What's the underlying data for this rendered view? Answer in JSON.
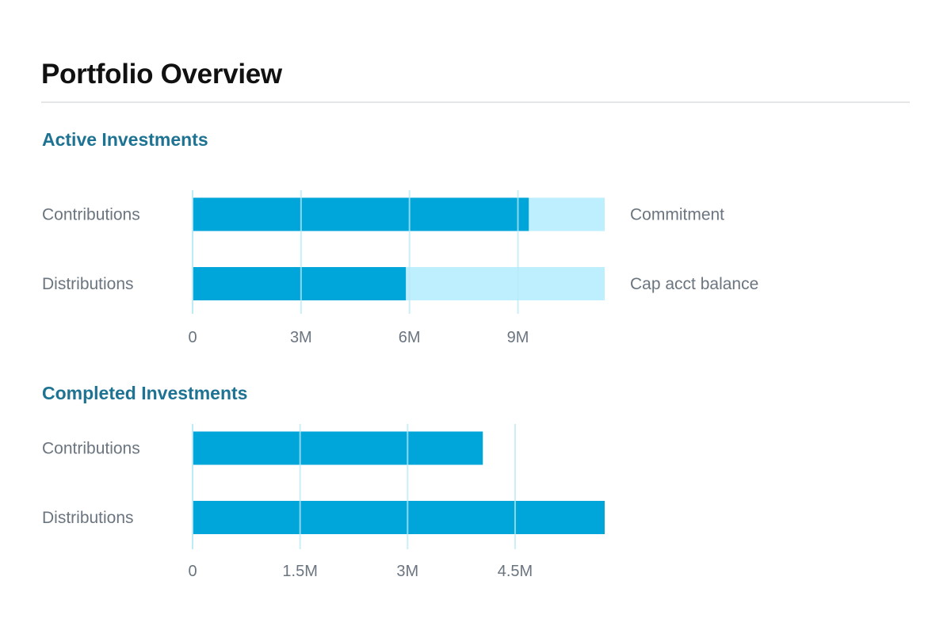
{
  "page": {
    "title": "Portfolio Overview"
  },
  "colors": {
    "primary_bar": "#00a5d9",
    "secondary_bar": "#bdefff",
    "gridline": "#b8e9f5",
    "section_title": "#1e7392",
    "label_text": "#6b7580"
  },
  "chart_data": [
    {
      "type": "bar",
      "orientation": "horizontal",
      "title": "Active Investments",
      "categories": [
        "Contributions",
        "Distributions"
      ],
      "series": [
        {
          "values": [
            9.3,
            5.9
          ]
        },
        {
          "values": [
            11.4,
            11.4
          ]
        }
      ],
      "bar_end_labels": [
        "Commitment",
        "Cap acct balance"
      ],
      "xlim": [
        0,
        11.4
      ],
      "xticks": [
        0,
        3,
        6,
        9
      ],
      "xtick_labels": [
        "0",
        "3M",
        "6M",
        "9M"
      ],
      "xlabel": "",
      "ylabel": "",
      "grid": "vertical"
    },
    {
      "type": "bar",
      "orientation": "horizontal",
      "title": "Completed Investments",
      "categories": [
        "Contributions",
        "Distributions"
      ],
      "series": [
        {
          "values": [
            4.05,
            5.75
          ]
        }
      ],
      "xlim": [
        0,
        5.75
      ],
      "xticks": [
        0,
        1.5,
        3,
        4.5
      ],
      "xtick_labels": [
        "0",
        "1.5M",
        "3M",
        "4.5M"
      ],
      "xlabel": "",
      "ylabel": "",
      "grid": "vertical"
    }
  ]
}
